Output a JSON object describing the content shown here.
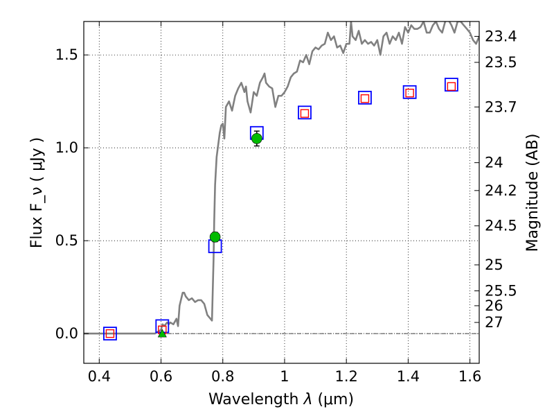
{
  "chart_data": {
    "type": "scatter",
    "xlabel": "Wavelength  λ (μm)",
    "ylabel": "Flux  F_ν  ( μJy )",
    "ylabel_right": "Magnitude (AB)",
    "xlim": [
      0.35,
      1.63
    ],
    "ylim": [
      -0.16,
      1.68
    ],
    "x_ticks": [
      0.4,
      0.6,
      0.8,
      1.0,
      1.2,
      1.4,
      1.6
    ],
    "x_tick_labels": [
      "0.4",
      "0.6",
      "0.8",
      "1",
      "1.2",
      "1.4",
      "1.6"
    ],
    "y_ticks": [
      0.0,
      0.5,
      1.0,
      1.5
    ],
    "y_tick_labels": [
      "0.0",
      "0.5",
      "1.0",
      "1.5"
    ],
    "right_ticks": [
      {
        "label": "23.4",
        "flux": 1.6
      },
      {
        "label": "23.5",
        "flux": 1.46
      },
      {
        "label": "23.7",
        "flux": 1.22
      },
      {
        "label": "24",
        "flux": 0.92
      },
      {
        "label": "24.2",
        "flux": 0.77
      },
      {
        "label": "24.5",
        "flux": 0.58
      },
      {
        "label": "25",
        "flux": 0.37
      },
      {
        "label": "25.5",
        "flux": 0.23
      },
      {
        "label": "26",
        "flux": 0.15
      },
      {
        "label": "27",
        "flux": 0.06
      }
    ],
    "grid": true,
    "zero_line": true,
    "series": [
      {
        "kind": "line",
        "color": "#808080",
        "x": [
          0.35,
          0.58,
          0.6,
          0.605,
          0.61,
          0.62,
          0.625,
          0.63,
          0.64,
          0.65,
          0.655,
          0.66,
          0.67,
          0.675,
          0.68,
          0.69,
          0.7,
          0.71,
          0.72,
          0.73,
          0.74,
          0.75,
          0.76,
          0.765,
          0.77,
          0.772,
          0.775,
          0.78,
          0.79,
          0.795,
          0.8,
          0.805,
          0.81,
          0.82,
          0.83,
          0.84,
          0.85,
          0.86,
          0.87,
          0.875,
          0.88,
          0.89,
          0.9,
          0.91,
          0.92,
          0.93,
          0.935,
          0.94,
          0.95,
          0.96,
          0.97,
          0.98,
          0.99,
          1.0,
          1.01,
          1.02,
          1.03,
          1.04,
          1.05,
          1.06,
          1.07,
          1.08,
          1.09,
          1.1,
          1.11,
          1.12,
          1.13,
          1.14,
          1.15,
          1.16,
          1.17,
          1.18,
          1.19,
          1.2,
          1.21,
          1.215,
          1.22,
          1.23,
          1.24,
          1.25,
          1.26,
          1.27,
          1.28,
          1.29,
          1.3,
          1.31,
          1.32,
          1.33,
          1.34,
          1.35,
          1.36,
          1.37,
          1.38,
          1.39,
          1.4,
          1.41,
          1.42,
          1.43,
          1.44,
          1.45,
          1.46,
          1.47,
          1.48,
          1.49,
          1.5,
          1.51,
          1.52,
          1.53,
          1.54,
          1.55,
          1.56,
          1.57,
          1.58,
          1.59,
          1.6,
          1.61,
          1.62,
          1.63
        ],
        "y": [
          0.0,
          0.0,
          0.02,
          0.05,
          0.04,
          0.06,
          0.05,
          0.06,
          0.05,
          0.08,
          0.04,
          0.15,
          0.22,
          0.22,
          0.2,
          0.18,
          0.19,
          0.17,
          0.18,
          0.18,
          0.16,
          0.1,
          0.08,
          0.07,
          0.4,
          0.6,
          0.8,
          0.95,
          1.08,
          1.12,
          1.13,
          1.05,
          1.22,
          1.25,
          1.2,
          1.28,
          1.32,
          1.35,
          1.3,
          1.33,
          1.25,
          1.19,
          1.3,
          1.28,
          1.35,
          1.38,
          1.4,
          1.35,
          1.33,
          1.32,
          1.22,
          1.28,
          1.28,
          1.3,
          1.33,
          1.38,
          1.4,
          1.41,
          1.47,
          1.46,
          1.5,
          1.45,
          1.52,
          1.54,
          1.53,
          1.55,
          1.56,
          1.62,
          1.58,
          1.6,
          1.54,
          1.55,
          1.51,
          1.56,
          1.56,
          1.68,
          1.6,
          1.58,
          1.63,
          1.56,
          1.58,
          1.56,
          1.57,
          1.55,
          1.58,
          1.5,
          1.6,
          1.62,
          1.56,
          1.6,
          1.58,
          1.62,
          1.56,
          1.65,
          1.62,
          1.66,
          1.64,
          1.64,
          1.65,
          1.68,
          1.62,
          1.62,
          1.66,
          1.68,
          1.64,
          1.62,
          1.68,
          1.69,
          1.66,
          1.62,
          1.68,
          1.68,
          1.66,
          1.64,
          1.62,
          1.58,
          1.56,
          1.6
        ]
      },
      {
        "kind": "open_square",
        "color": "#0000ff",
        "x": [
          0.435,
          0.604,
          0.775,
          0.91,
          1.065,
          1.26,
          1.405,
          1.54
        ],
        "y": [
          0.0,
          0.04,
          0.47,
          1.08,
          1.19,
          1.27,
          1.3,
          1.34
        ]
      },
      {
        "kind": "open_square",
        "color": "#ff0000",
        "x": [
          0.435,
          0.604,
          1.065,
          1.26,
          1.405,
          1.54
        ],
        "y": [
          0.0,
          0.02,
          1.185,
          1.265,
          1.295,
          1.33
        ]
      },
      {
        "kind": "filled_circle",
        "color": "#00bb00",
        "x": [
          0.775,
          0.91
        ],
        "y": [
          0.52,
          1.05
        ],
        "yerr": [
          0.025,
          0.04
        ]
      },
      {
        "kind": "filled_triangle",
        "color": "#00bb00",
        "x": [
          0.604
        ],
        "y": [
          0.0
        ]
      }
    ]
  }
}
